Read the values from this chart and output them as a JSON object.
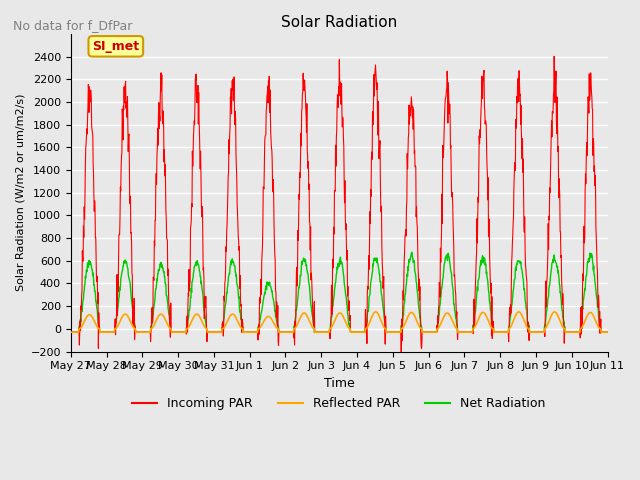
{
  "title": "Solar Radiation",
  "subtitle": "No data for f_DfPar",
  "ylabel": "Solar Radiation (W/m2 or um/m2/s)",
  "xlabel": "Time",
  "ylim": [
    -200,
    2600
  ],
  "yticks": [
    -200,
    0,
    200,
    400,
    600,
    800,
    1000,
    1200,
    1400,
    1600,
    1800,
    2000,
    2200,
    2400
  ],
  "x_tick_labels": [
    "May 27",
    "May 28",
    "May 29",
    "May 30",
    "May 31",
    "Jun 1",
    "Jun 2",
    "Jun 3",
    "Jun 4",
    "Jun 5",
    "Jun 6",
    "Jun 7",
    "Jun 8",
    "Jun 9",
    "Jun 10",
    "Jun 11"
  ],
  "background_color": "#e8e8e8",
  "plot_bg_color": "#e8e8e8",
  "grid_color": "#ffffff",
  "incoming_color": "#ff0000",
  "reflected_color": "#ffa500",
  "net_color": "#00cc00",
  "legend_box_color": "#ffff99",
  "legend_box_edge": "#cc9900",
  "si_met_color": "#cc0000",
  "num_days": 15,
  "day_hours": 24,
  "noise_scale": 0.05,
  "night_val": -30,
  "peak_incoming_variation": [
    2100,
    2100,
    2100,
    2100,
    2100,
    2050,
    2150,
    2170,
    2250,
    2050,
    2150,
    2160,
    2150,
    2150,
    2100
  ],
  "peak_net": [
    590,
    600,
    575,
    590,
    590,
    400,
    610,
    590,
    620,
    650,
    650,
    630,
    610,
    620,
    640
  ],
  "peak_reflected": [
    125,
    130,
    130,
    130,
    130,
    110,
    140,
    140,
    150,
    145,
    140,
    145,
    150,
    150,
    145
  ]
}
